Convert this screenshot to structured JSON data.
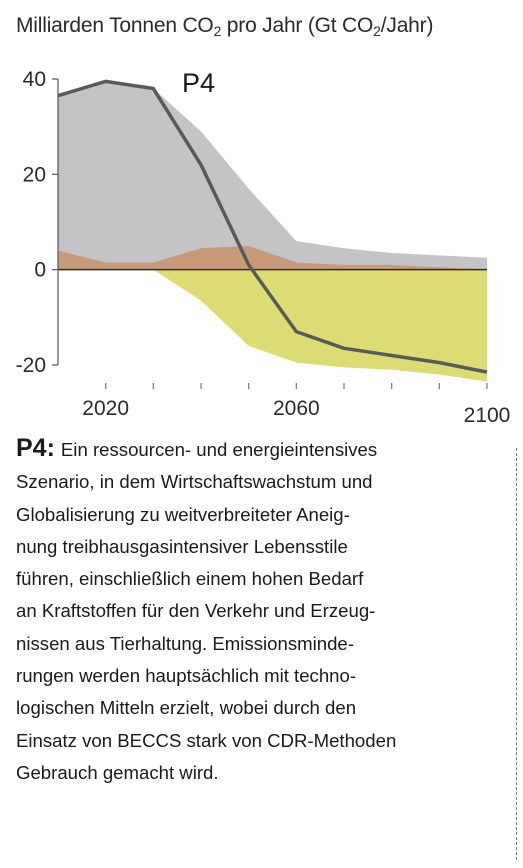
{
  "chart_data": {
    "type": "area",
    "title_prefix": "Milliarden Tonnen CO",
    "title_middle": " pro Jahr (Gt CO",
    "title_suffix": "/Jahr)",
    "title_sub": "2",
    "scenario_label": "P4",
    "xlim": [
      2010,
      2100
    ],
    "ylim": [
      -20,
      40
    ],
    "x_ticks": [
      2020,
      2030,
      2040,
      2050,
      2060,
      2070,
      2080,
      2090,
      2100
    ],
    "x_tick_labels": [
      {
        "value": 2020,
        "label": "2020"
      },
      {
        "value": 2060,
        "label": "2060"
      },
      {
        "value": 2100,
        "label": "2100"
      }
    ],
    "y_ticks": [
      {
        "value": 40,
        "label": "40"
      },
      {
        "value": 20,
        "label": "20"
      },
      {
        "value": 0,
        "label": "0"
      },
      {
        "value": -20,
        "label": "-20"
      }
    ],
    "series": [
      {
        "key": "gross_fossil",
        "color": "#c4c4c6",
        "x": [
          2010,
          2020,
          2030,
          2040,
          2050,
          2060,
          2070,
          2080,
          2090,
          2100
        ],
        "values": [
          36.5,
          39.5,
          38,
          29,
          17,
          6,
          4.5,
          3.5,
          3,
          2.5
        ]
      },
      {
        "key": "land_use",
        "color": "#c99a7a",
        "x": [
          2010,
          2020,
          2030,
          2040,
          2050,
          2060,
          2070,
          2080,
          2090,
          2100
        ],
        "values": [
          4,
          1.5,
          1.5,
          4.5,
          5,
          1.5,
          1,
          1,
          0.5,
          0
        ]
      },
      {
        "key": "beccs",
        "color": "#dddb74",
        "x": [
          2010,
          2020,
          2030,
          2040,
          2050,
          2060,
          2070,
          2080,
          2090,
          2100
        ],
        "values": [
          0,
          0,
          0,
          -6.5,
          -16,
          -19.5,
          -20.5,
          -21,
          -22,
          -23.5
        ]
      },
      {
        "key": "net",
        "color": "#5a5a5a",
        "x": [
          2010,
          2020,
          2030,
          2040,
          2050,
          2060,
          2070,
          2080,
          2090,
          2100
        ],
        "values": [
          36.5,
          39.5,
          38,
          22,
          1,
          -13,
          -16.5,
          -18,
          -19.5,
          -21.5
        ]
      }
    ]
  },
  "description": {
    "heading": "P4:",
    "lines": [
      "Ein ressourcen- und energieintensives",
      "Szenario, in dem Wirtschaftswachstum und",
      "Globalisierung zu weitverbreiteter Aneig-",
      "nung treibhausgasintensiver Lebensstile",
      "führen, einschließlich einem hohen Bedarf",
      "an Kraftstoffen für den Verkehr und Erzeug-",
      "nissen aus Tierhaltung. Emissionsminde-",
      "rungen werden hauptsächlich mit techno-",
      "logischen Mitteln erzielt, wobei durch den",
      "Einsatz von BECCS stark von CDR-Methoden",
      "Gebrauch gemacht wird."
    ]
  }
}
